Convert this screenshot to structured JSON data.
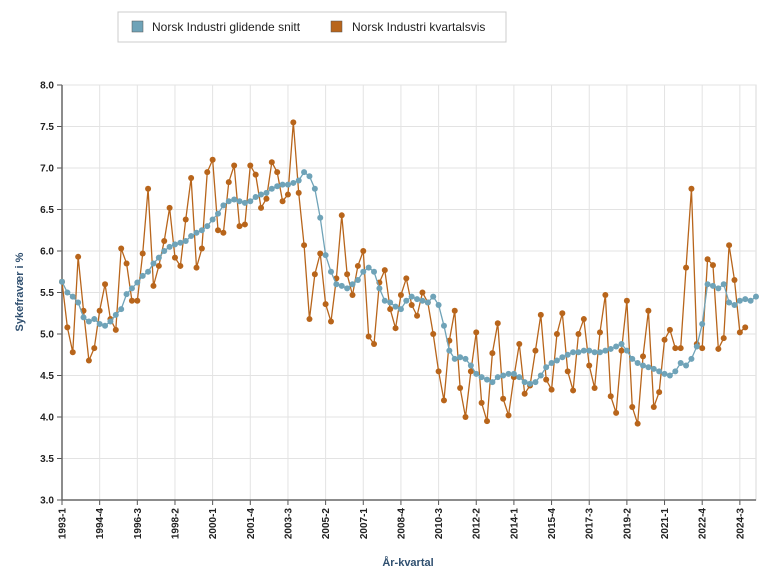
{
  "chart_data": {
    "type": "line",
    "xlabel": "År-kvartal",
    "ylabel": "Sykefravær i %",
    "ylim": [
      3.0,
      8.0
    ],
    "yticks": [
      "3.0",
      "3.5",
      "4.0",
      "4.5",
      "5.0",
      "5.5",
      "6.0",
      "6.5",
      "7.0",
      "7.5",
      "8.0"
    ],
    "xtick_labels": [
      "1993-1",
      "1994-4",
      "1996-3",
      "1998-2",
      "2000-1",
      "2001-4",
      "2003-3",
      "2005-2",
      "2007-1",
      "2008-4",
      "2010-3",
      "2012-2",
      "2014-1",
      "2015-4",
      "2017-3",
      "2019-2",
      "2021-1",
      "2022-4",
      "2024-3"
    ],
    "grid": true,
    "legend_position": "top-left",
    "x_start": "1993-1",
    "x_end": "2024-3",
    "series": [
      {
        "name": "Norsk Industri glidende snitt",
        "color": "#6fa3b8",
        "values": [
          5.63,
          5.5,
          5.45,
          5.38,
          5.2,
          5.15,
          5.18,
          5.12,
          5.1,
          5.15,
          5.23,
          5.3,
          5.48,
          5.55,
          5.62,
          5.7,
          5.75,
          5.85,
          5.92,
          6.0,
          6.05,
          6.08,
          6.1,
          6.12,
          6.18,
          6.22,
          6.25,
          6.3,
          6.38,
          6.45,
          6.55,
          6.6,
          6.62,
          6.6,
          6.58,
          6.6,
          6.65,
          6.68,
          6.7,
          6.75,
          6.78,
          6.8,
          6.8,
          6.82,
          6.85,
          6.95,
          6.9,
          6.75,
          6.4,
          5.95,
          5.75,
          5.6,
          5.58,
          5.55,
          5.6,
          5.65,
          5.75,
          5.8,
          5.75,
          5.55,
          5.4,
          5.38,
          5.33,
          5.3,
          5.4,
          5.45,
          5.42,
          5.4,
          5.38,
          5.45,
          5.35,
          5.1,
          4.8,
          4.7,
          4.72,
          4.7,
          4.62,
          4.52,
          4.48,
          4.45,
          4.42,
          4.48,
          4.5,
          4.52,
          4.52,
          4.48,
          4.42,
          4.4,
          4.42,
          4.5,
          4.6,
          4.65,
          4.68,
          4.72,
          4.75,
          4.78,
          4.78,
          4.8,
          4.8,
          4.78,
          4.78,
          4.8,
          4.82,
          4.85,
          4.88,
          4.8,
          4.7,
          4.65,
          4.62,
          4.6,
          4.58,
          4.55,
          4.52,
          4.5,
          4.55,
          4.65,
          4.62,
          4.7,
          4.85,
          5.12,
          5.6,
          5.58,
          5.55,
          5.6,
          5.38,
          5.35,
          5.4,
          5.42,
          5.4,
          5.45
        ]
      },
      {
        "name": "Norsk Industri kvartalsvis",
        "color": "#b8651b",
        "values": [
          5.63,
          5.08,
          4.78,
          5.93,
          5.28,
          4.68,
          4.83,
          5.28,
          5.6,
          5.18,
          5.05,
          6.03,
          5.85,
          5.4,
          5.4,
          5.97,
          6.75,
          5.58,
          5.82,
          6.12,
          6.52,
          5.92,
          5.82,
          6.38,
          6.88,
          5.8,
          6.03,
          6.95,
          7.1,
          6.25,
          6.22,
          6.83,
          7.03,
          6.3,
          6.32,
          7.03,
          6.92,
          6.52,
          6.63,
          7.07,
          6.95,
          6.6,
          6.68,
          7.55,
          6.7,
          6.07,
          5.18,
          5.72,
          5.97,
          5.36,
          5.15,
          5.67,
          6.43,
          5.72,
          5.47,
          5.82,
          6.0,
          4.97,
          4.88,
          5.62,
          5.77,
          5.3,
          5.07,
          5.47,
          5.67,
          5.35,
          5.22,
          5.5,
          5.38,
          5.0,
          4.55,
          4.2,
          4.92,
          5.28,
          4.35,
          4.0,
          4.55,
          5.02,
          4.17,
          3.95,
          4.77,
          5.13,
          4.22,
          4.02,
          4.48,
          4.88,
          4.28,
          4.38,
          4.8,
          5.23,
          4.45,
          4.33,
          5.0,
          5.25,
          4.55,
          4.32,
          5.0,
          5.18,
          4.62,
          4.35,
          5.02,
          5.47,
          4.25,
          4.05,
          4.8,
          5.4,
          4.12,
          3.92,
          4.73,
          5.28,
          4.12,
          4.3,
          4.93,
          5.05,
          4.83,
          4.83,
          5.8,
          6.75,
          4.88,
          4.83,
          5.9,
          5.83,
          4.82,
          4.95,
          6.07,
          5.65,
          5.02,
          5.08
        ]
      }
    ]
  }
}
